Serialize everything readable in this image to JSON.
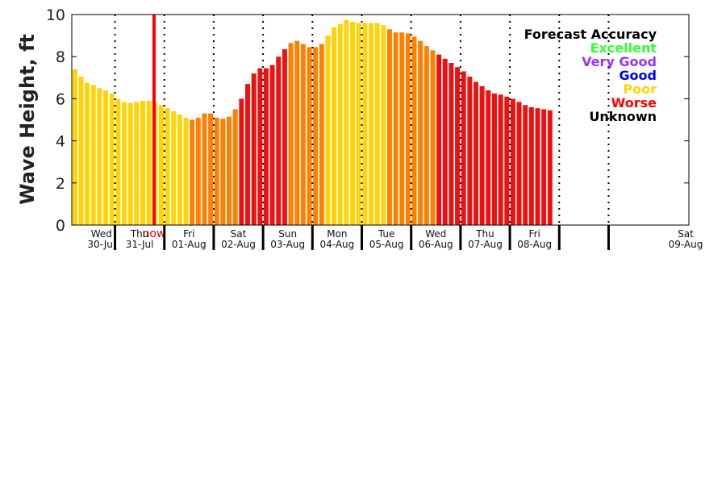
{
  "chart_data": {
    "type": "bar",
    "ylabel": "Wave Height, ft",
    "ylim": [
      0,
      10
    ],
    "yticks": [
      "0",
      "2",
      "4",
      "6",
      "8",
      "10"
    ],
    "x_start": "2025-07-30T03:00",
    "bar_interval_hours": 3,
    "days": [
      {
        "weekday": "Wed",
        "date": "30-Jul"
      },
      {
        "weekday": "Thu",
        "date": "31-Jul"
      },
      {
        "weekday": "Fri",
        "date": "01-Aug"
      },
      {
        "weekday": "Sat",
        "date": "02-Aug"
      },
      {
        "weekday": "Sun",
        "date": "03-Aug"
      },
      {
        "weekday": "Mon",
        "date": "04-Aug"
      },
      {
        "weekday": "Tue",
        "date": "05-Aug"
      },
      {
        "weekday": "Wed",
        "date": "06-Aug"
      },
      {
        "weekday": "Thu",
        "date": "07-Aug"
      },
      {
        "weekday": "Fri",
        "date": "08-Aug"
      },
      {
        "weekday": "Sat",
        "date": "09-Aug"
      }
    ],
    "now_label": "now",
    "now_marker_x": "2025-07-31T18:00",
    "values": [
      7.4,
      7.05,
      6.75,
      6.65,
      6.5,
      6.4,
      6.25,
      6.0,
      5.85,
      5.8,
      5.85,
      5.9,
      5.9,
      5.8,
      5.7,
      5.55,
      5.4,
      5.25,
      5.1,
      5.0,
      5.1,
      5.3,
      5.3,
      5.1,
      5.05,
      5.15,
      5.5,
      6.0,
      6.7,
      7.2,
      7.45,
      7.45,
      7.6,
      8.0,
      8.35,
      8.65,
      8.75,
      8.6,
      8.45,
      8.45,
      8.6,
      9.0,
      9.4,
      9.55,
      9.75,
      9.65,
      9.6,
      9.6,
      9.6,
      9.6,
      9.5,
      9.3,
      9.15,
      9.15,
      9.1,
      8.95,
      8.75,
      8.5,
      8.3,
      8.1,
      7.9,
      7.7,
      7.5,
      7.3,
      7.05,
      6.8,
      6.6,
      6.4,
      6.25,
      6.2,
      6.1,
      6.0,
      5.85,
      5.7,
      5.6,
      5.55,
      5.5,
      5.45
    ],
    "accuracy": [
      "poor",
      "poor",
      "poor",
      "poor",
      "poor",
      "poor",
      "poor",
      "poor",
      "poor",
      "poor",
      "poor",
      "poor",
      "poor",
      "poor",
      "poor",
      "poor",
      "poor",
      "poor",
      "poor",
      "fair",
      "fair",
      "fair",
      "fair",
      "fair",
      "fair",
      "fair",
      "fair",
      "worse",
      "worse",
      "worse",
      "worse",
      "worse",
      "worse",
      "worse",
      "worse",
      "fair",
      "fair",
      "fair",
      "fair",
      "fair",
      "fair",
      "poor",
      "poor",
      "poor",
      "poor",
      "poor",
      "poor",
      "poor",
      "poor",
      "poor",
      "poor",
      "fair",
      "fair",
      "fair",
      "fair",
      "fair",
      "fair",
      "fair",
      "fair",
      "worse",
      "worse",
      "worse",
      "worse",
      "worse",
      "worse",
      "worse",
      "worse",
      "worse",
      "worse",
      "worse",
      "worse",
      "worse",
      "worse",
      "worse",
      "worse",
      "worse",
      "worse",
      "worse"
    ],
    "legend": {
      "title": "Forecast Accuracy",
      "position": "top-right",
      "entries": [
        {
          "label": "Excellent",
          "color": "#33ff33"
        },
        {
          "label": "Very Good",
          "color": "#9933ff"
        },
        {
          "label": "Good",
          "color": "#0000ff"
        },
        {
          "label": "Poor",
          "color": "#ffd700"
        },
        {
          "label": "Worse",
          "color": "#ff0000"
        },
        {
          "label": "Unknown",
          "color": "#000000"
        }
      ]
    },
    "colors": {
      "poor": "#ffd30a",
      "fair": "#ff7f00",
      "mid": "#ff5a00",
      "worse": "#ee1111",
      "now_line": "#ff0000",
      "grid": "#000000"
    },
    "grid": true
  }
}
